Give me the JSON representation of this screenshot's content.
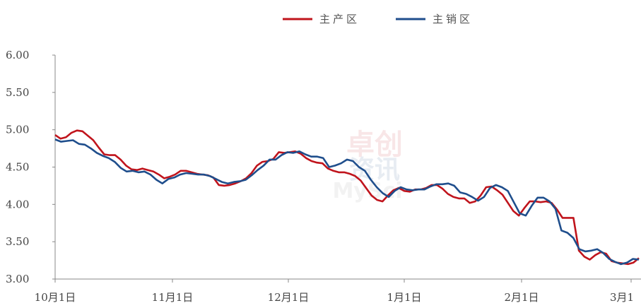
{
  "chart_data": {
    "type": "line",
    "title": "",
    "xlabel": "",
    "ylabel": "",
    "ylim": [
      3.0,
      6.0
    ],
    "yticks": [
      "6.00",
      "5.50",
      "5.00",
      "4.50",
      "4.00",
      "3.50",
      "3.00"
    ],
    "xticks": [
      "10月1日",
      "11月1日",
      "12月1日",
      "1月1日",
      "2月1日",
      "3月1"
    ],
    "legend_position": "top-center",
    "grid": false,
    "series": [
      {
        "name": "主产区",
        "color": "#c0141c",
        "values": [
          4.93,
          4.88,
          4.9,
          4.96,
          4.99,
          4.98,
          4.92,
          4.86,
          4.76,
          4.67,
          4.66,
          4.66,
          4.6,
          4.52,
          4.47,
          4.46,
          4.48,
          4.46,
          4.44,
          4.4,
          4.35,
          4.37,
          4.4,
          4.45,
          4.45,
          4.43,
          4.41,
          4.4,
          4.39,
          4.36,
          4.26,
          4.25,
          4.26,
          4.28,
          4.31,
          4.35,
          4.42,
          4.52,
          4.57,
          4.58,
          4.61,
          4.7,
          4.69,
          4.7,
          4.71,
          4.68,
          4.62,
          4.58,
          4.56,
          4.55,
          4.48,
          4.45,
          4.43,
          4.43,
          4.41,
          4.38,
          4.32,
          4.22,
          4.12,
          4.06,
          4.04,
          4.12,
          4.19,
          4.22,
          4.18,
          4.17,
          4.2,
          4.2,
          4.22,
          4.26,
          4.26,
          4.21,
          4.14,
          4.1,
          4.08,
          4.08,
          4.02,
          4.04,
          4.12,
          4.23,
          4.24,
          4.19,
          4.13,
          4.02,
          3.91,
          3.85,
          3.95,
          4.04,
          4.04,
          4.03,
          4.04,
          4.02,
          3.93,
          3.82,
          3.82,
          3.82,
          3.38,
          3.3,
          3.26,
          3.32,
          3.36,
          3.34,
          3.24,
          3.22,
          3.21,
          3.2,
          3.22,
          3.28
        ],
        "line_points": [
          [
            0,
            0
          ],
          [
            1,
            0
          ],
          [
            2,
            0
          ],
          [
            3,
            0
          ],
          [
            4,
            0
          ],
          [
            5,
            0
          ],
          [
            6,
            0
          ],
          [
            7,
            0
          ],
          [
            8,
            0
          ],
          [
            9,
            0
          ],
          [
            10,
            0
          ],
          [
            11,
            0
          ],
          [
            12,
            0
          ],
          [
            13,
            0
          ],
          [
            14,
            0
          ],
          [
            15,
            0
          ],
          [
            16,
            0
          ],
          [
            17,
            0
          ],
          [
            18,
            0
          ],
          [
            19,
            0
          ],
          [
            20,
            0
          ],
          [
            21,
            0
          ],
          [
            22,
            0
          ],
          [
            23,
            0
          ],
          [
            24,
            0
          ],
          [
            25,
            0
          ],
          [
            26,
            0
          ],
          [
            27,
            0
          ],
          [
            28,
            0
          ],
          [
            29,
            0
          ],
          [
            30,
            0
          ],
          [
            31,
            0
          ],
          [
            32,
            0
          ],
          [
            33,
            0
          ],
          [
            34,
            0
          ],
          [
            35,
            0
          ],
          [
            36,
            0
          ],
          [
            37,
            0
          ],
          [
            38,
            0
          ],
          [
            39,
            0
          ],
          [
            40,
            0
          ],
          [
            41,
            0
          ],
          [
            42,
            0
          ],
          [
            43,
            0
          ],
          [
            44,
            0
          ],
          [
            45,
            0
          ],
          [
            46,
            0
          ],
          [
            47,
            0
          ],
          [
            48,
            0
          ],
          [
            49,
            0
          ],
          [
            50,
            0
          ],
          [
            51,
            0
          ],
          [
            52,
            0
          ],
          [
            53,
            0
          ],
          [
            54,
            0
          ],
          [
            55,
            0
          ],
          [
            56,
            0
          ],
          [
            57,
            0
          ],
          [
            58,
            0
          ],
          [
            59,
            0
          ],
          [
            60,
            0
          ],
          [
            61,
            0
          ],
          [
            62,
            0
          ],
          [
            63,
            0
          ],
          [
            64,
            0
          ],
          [
            65,
            0
          ],
          [
            66,
            0
          ],
          [
            67,
            0
          ],
          [
            68,
            0
          ],
          [
            69,
            0
          ],
          [
            70,
            0
          ],
          [
            71,
            0
          ],
          [
            72,
            0
          ],
          [
            73,
            0
          ],
          [
            74,
            0
          ],
          [
            75,
            0
          ],
          [
            76,
            0
          ],
          [
            77,
            0
          ],
          [
            78,
            0
          ],
          [
            79,
            0
          ],
          [
            80,
            0
          ],
          [
            81,
            0
          ],
          [
            82,
            0
          ],
          [
            83,
            0
          ],
          [
            84,
            0
          ],
          [
            85,
            0
          ],
          [
            86,
            0
          ],
          [
            87,
            0
          ],
          [
            88,
            0
          ],
          [
            89,
            0
          ],
          [
            90,
            0
          ],
          [
            91,
            0
          ],
          [
            92,
            0
          ],
          [
            93,
            0
          ],
          [
            94,
            0
          ],
          [
            95,
            0
          ],
          [
            96,
            0
          ],
          [
            97,
            0
          ],
          [
            98,
            0
          ],
          [
            99,
            0
          ],
          [
            100,
            0
          ],
          [
            101,
            0
          ],
          [
            102,
            0
          ],
          [
            103,
            0
          ],
          [
            104,
            0
          ],
          [
            105,
            0
          ],
          [
            106,
            0
          ],
          [
            107,
            0
          ]
        ]
      },
      {
        "name": "主销区",
        "color": "#1f4e8c",
        "values": [
          4.87,
          4.84,
          4.85,
          4.86,
          4.81,
          4.8,
          4.75,
          4.69,
          4.65,
          4.62,
          4.57,
          4.49,
          4.44,
          4.45,
          4.43,
          4.44,
          4.4,
          4.33,
          4.28,
          4.34,
          4.36,
          4.4,
          4.42,
          4.41,
          4.4,
          4.4,
          4.38,
          4.34,
          4.3,
          4.28,
          4.3,
          4.31,
          4.33,
          4.39,
          4.46,
          4.52,
          4.6,
          4.6,
          4.66,
          4.7,
          4.69,
          4.71,
          4.67,
          4.64,
          4.64,
          4.62,
          4.5,
          4.52,
          4.55,
          4.6,
          4.58,
          4.5,
          4.45,
          4.33,
          4.23,
          4.15,
          4.1,
          4.18,
          4.23,
          4.2,
          4.19,
          4.2,
          4.2,
          4.24,
          4.27,
          4.27,
          4.28,
          4.25,
          4.16,
          4.14,
          4.1,
          4.05,
          4.1,
          4.22,
          4.26,
          4.23,
          4.18,
          4.03,
          3.88,
          3.85,
          3.98,
          4.09,
          4.09,
          4.04,
          3.94,
          3.65,
          3.62,
          3.55,
          3.4,
          3.37,
          3.38,
          3.4,
          3.35,
          3.27,
          3.23,
          3.2,
          3.22,
          3.27,
          3.26
        ],
        "line_points": []
      }
    ]
  },
  "watermark": {
    "line1": "卓创",
    "line2": "资讯",
    "line3": "MySci"
  }
}
